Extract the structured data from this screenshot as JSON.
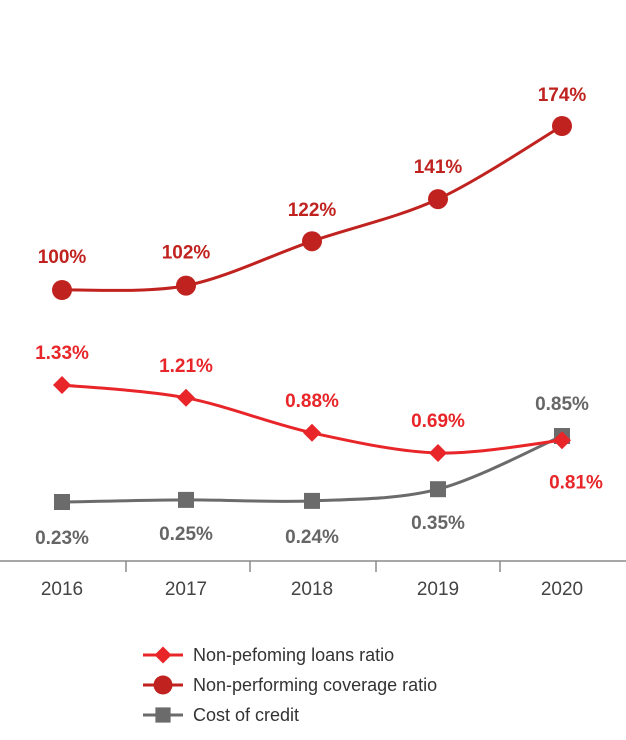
{
  "chart_data": {
    "type": "line",
    "title": "",
    "xlabel": "",
    "ylabel": "",
    "categories": [
      "2016",
      "2017",
      "2018",
      "2019",
      "2020"
    ],
    "series": [
      {
        "name": "Non-pefoming loans ratio",
        "values": [
          1.33,
          1.21,
          0.88,
          0.69,
          0.81
        ],
        "labels": [
          "1.33%",
          "1.21%",
          "0.88%",
          "0.69%",
          "0.81%"
        ],
        "color": "#e8262a",
        "marker": "diamond"
      },
      {
        "name": "Non-performing coverage ratio",
        "values": [
          100,
          102,
          122,
          141,
          174
        ],
        "labels": [
          "100%",
          "102%",
          "122%",
          "141%",
          "174%"
        ],
        "color": "#c0231f",
        "marker": "circle"
      },
      {
        "name": "Cost of credit",
        "values": [
          0.23,
          0.25,
          0.24,
          0.35,
          0.85
        ],
        "labels": [
          "0.23%",
          "0.25%",
          "0.24%",
          "0.35%",
          "0.85%"
        ],
        "color": "#6b6b6b",
        "marker": "square"
      }
    ],
    "legend_position": "bottom",
    "grid": false
  }
}
